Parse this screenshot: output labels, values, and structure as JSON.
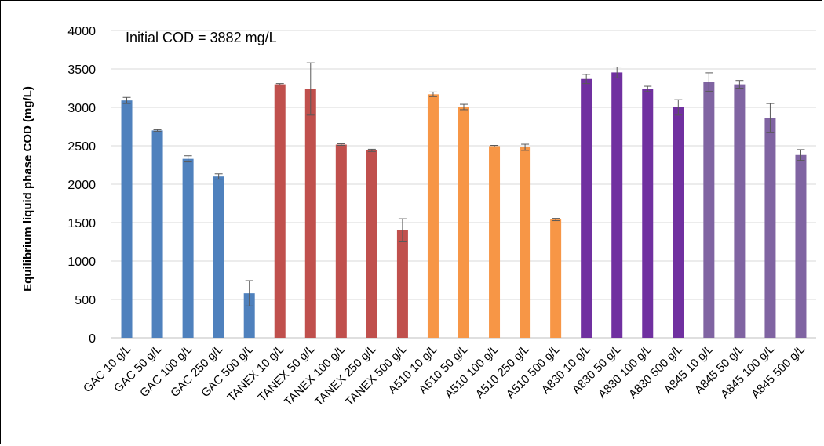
{
  "chart_data": {
    "type": "bar",
    "title": "",
    "annotation": "Initial COD = 3882 mg/L",
    "xlabel": "",
    "ylabel": "Equilibrium liquid phase COD (mg/L)",
    "ylim": [
      0,
      4000
    ],
    "yticks": [
      0,
      500,
      1000,
      1500,
      2000,
      2500,
      3000,
      3500,
      4000
    ],
    "grid": true,
    "legend": "none",
    "categories": [
      "GAC 10 g/L",
      "GAC 50 g/L",
      "GAC 100 g/L",
      "GAC 250 g/L",
      "GAC 500 g/L",
      "TANEX 10 g/L",
      "TANEX 50 g/L",
      "TANEX 100 g/L",
      "TANEX 250 g/L",
      "TANEX 500 g/L",
      "A510 10 g/L",
      "A510 50 g/L",
      "A510 100 g/L",
      "A510 250 g/L",
      "A510 500 g/L",
      "A830 10 g/L",
      "A830 50 g/L",
      "A830 100 g/L",
      "A830 500 g/L",
      "A845 10 g/L",
      "A845 50 g/L",
      "A845 100 g/L",
      "A845 500 g/L"
    ],
    "values": [
      3090,
      2700,
      2330,
      2100,
      580,
      3300,
      3240,
      2515,
      2440,
      1400,
      3170,
      3005,
      2495,
      2480,
      1540,
      3370,
      3455,
      3240,
      3000,
      3330,
      3300,
      2860,
      2380
    ],
    "errors": [
      40,
      10,
      40,
      35,
      165,
      10,
      340,
      10,
      15,
      150,
      30,
      35,
      10,
      40,
      15,
      60,
      70,
      35,
      100,
      120,
      50,
      190,
      70
    ],
    "colors": [
      "#4f81bd",
      "#4f81bd",
      "#4f81bd",
      "#4f81bd",
      "#4f81bd",
      "#c0504d",
      "#c0504d",
      "#c0504d",
      "#c0504d",
      "#c0504d",
      "#f79646",
      "#f79646",
      "#f79646",
      "#f79646",
      "#f79646",
      "#7030a0",
      "#7030a0",
      "#7030a0",
      "#7030a0",
      "#8064a2",
      "#8064a2",
      "#8064a2",
      "#8064a2"
    ]
  }
}
